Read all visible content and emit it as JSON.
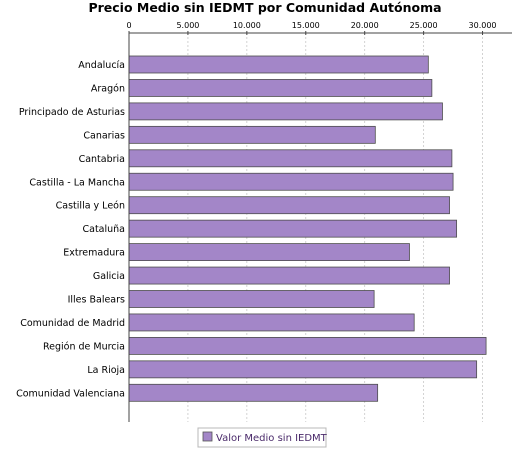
{
  "chart_data": {
    "type": "bar",
    "orientation": "horizontal",
    "title": "Precio Medio sin IEDMT por Comunidad Autónoma",
    "xlabel": "",
    "ylabel": "",
    "xlim": [
      0,
      32500
    ],
    "ticks": [
      {
        "value": 0,
        "label": "0"
      },
      {
        "value": 5000,
        "label": "5.000"
      },
      {
        "value": 10000,
        "label": "10.000"
      },
      {
        "value": 15000,
        "label": "15.000"
      },
      {
        "value": 20000,
        "label": "20.000"
      },
      {
        "value": 25000,
        "label": "25.000"
      },
      {
        "value": 30000,
        "label": "30.000"
      }
    ],
    "grid": true,
    "legend_position": "bottom",
    "bar_color": "#a386c8",
    "categories": [
      "Andalucía",
      "Aragón",
      "Principado de Asturias",
      "Canarias",
      "Cantabria",
      "Castilla - La Mancha",
      "Castilla y León",
      "Cataluña",
      "Extremadura",
      "Galicia",
      "Illes Balears",
      "Comunidad de Madrid",
      "Región de Murcia",
      "La Rioja",
      "Comunidad Valenciana"
    ],
    "series": [
      {
        "name": "Valor Medio sin IEDMT",
        "values": [
          25400,
          25700,
          26600,
          20900,
          27400,
          27500,
          27200,
          27800,
          23800,
          27200,
          20800,
          24200,
          30300,
          29500,
          21100
        ]
      }
    ]
  }
}
